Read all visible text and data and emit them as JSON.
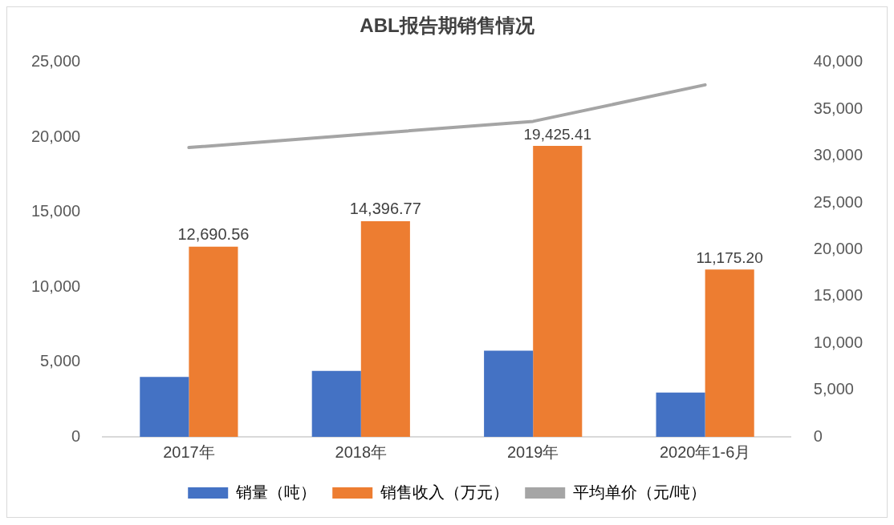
{
  "chart_data": {
    "type": "bar",
    "title": "ABL报告期销售情况",
    "categories": [
      "2017年",
      "2018年",
      "2019年",
      "2020年1-6月"
    ],
    "series": [
      {
        "name": "销量（吨）",
        "color": "#4472c4",
        "values": [
          4000,
          4400,
          5750,
          2950
        ]
      },
      {
        "name": "销售收入（万元）",
        "color": "#ed7d31",
        "values": [
          12690.56,
          14396.77,
          19425.41,
          11175.2
        ],
        "value_labels": [
          "12,690.56",
          "14,396.77",
          "19,425.41",
          "11,175.20"
        ]
      },
      {
        "name": "平均单价（元/吨）",
        "type": "line",
        "axis": "y2",
        "color": "#a5a5a5",
        "values": [
          30900,
          32300,
          33700,
          37600
        ]
      }
    ],
    "ylim": [
      0,
      25000
    ],
    "yticks": [
      0,
      {
        "value": 5000,
        "label": "5,000"
      },
      {
        "value": 10000,
        "label": "10,000"
      },
      {
        "value": 15000,
        "label": "15,000"
      },
      {
        "value": 20000,
        "label": "20,000"
      },
      {
        "value": 25000,
        "label": "25,000"
      }
    ],
    "y2lim": [
      0,
      40000
    ],
    "y2ticks": [
      0,
      {
        "value": 5000,
        "label": "5,000"
      },
      {
        "value": 10000,
        "label": "10,000"
      },
      {
        "value": 15000,
        "label": "15,000"
      },
      {
        "value": 20000,
        "label": "20,000"
      },
      {
        "value": 25000,
        "label": "25,000"
      },
      {
        "value": 30000,
        "label": "30,000"
      },
      {
        "value": 35000,
        "label": "35,000"
      },
      {
        "value": 40000,
        "label": "40,000"
      }
    ],
    "grid": false,
    "legend": "bottom",
    "marker": "none",
    "line_style": "solid"
  }
}
